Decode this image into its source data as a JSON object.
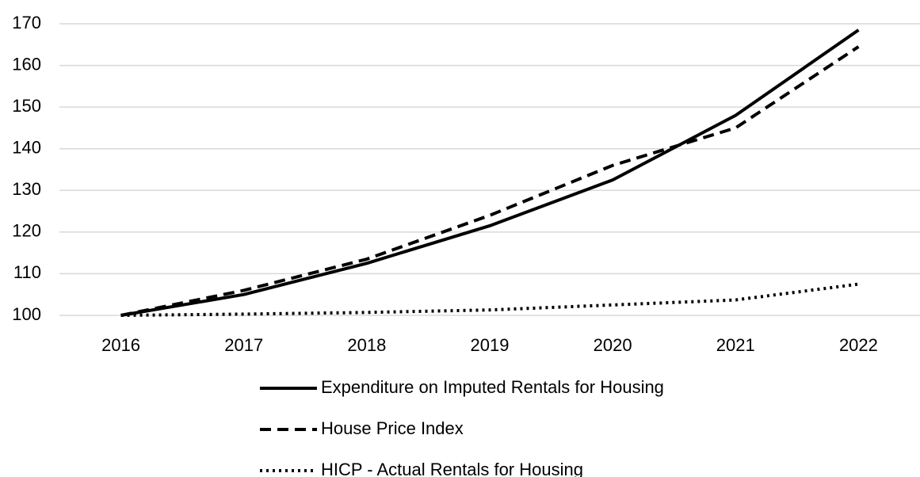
{
  "chart_data": {
    "type": "line",
    "categories": [
      "2016",
      "2017",
      "2018",
      "2019",
      "2020",
      "2021",
      "2022"
    ],
    "series": [
      {
        "name": "Expenditure on Imputed Rentals for Housing",
        "color": "#000000",
        "line_style": "solid",
        "values": [
          100,
          105,
          112.5,
          121.5,
          132.5,
          148,
          168.5
        ]
      },
      {
        "name": "House Price Index",
        "color": "#000000",
        "line_style": "dashed",
        "values": [
          100,
          106,
          113.5,
          124,
          136,
          145,
          164.5
        ]
      },
      {
        "name": "HICP - Actual Rentals for Housing",
        "color": "#000000",
        "line_style": "dotted",
        "values": [
          100,
          100.3,
          100.7,
          101.3,
          102.5,
          103.7,
          107.5
        ]
      }
    ],
    "ylim": [
      100,
      170
    ],
    "yticks": [
      100,
      110,
      120,
      130,
      140,
      150,
      160,
      170
    ],
    "grid": true,
    "legend": "bottom"
  }
}
